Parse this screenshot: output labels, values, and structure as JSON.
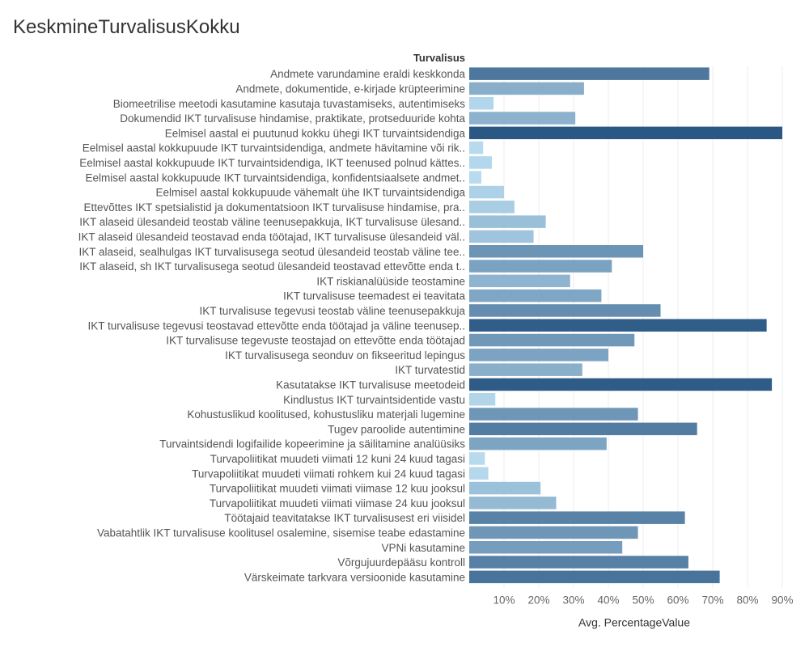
{
  "chart_data": {
    "type": "bar",
    "orientation": "horizontal",
    "title": "KeskmineTurvalisusKokku",
    "row_header": "Turvalisus",
    "xlabel": "Avg. PercentageValue",
    "xlim": [
      0,
      95
    ],
    "xticks": [
      10,
      20,
      30,
      40,
      50,
      60,
      70,
      80,
      90
    ],
    "xtick_labels": [
      "10%",
      "20%",
      "30%",
      "40%",
      "50%",
      "60%",
      "70%",
      "80%",
      "90%"
    ],
    "categories": [
      "Andmete varundamine eraldi keskkonda",
      "Andmete, dokumentide, e-kirjade krüpteerimine",
      "Biomeetrilise meetodi kasutamine kasutaja tuvastamiseks, autentimiseks",
      "Dokumendid IKT turvalisuse hindamise, praktikate, protseduuride kohta",
      "Eelmisel aastal ei puutunud kokku ühegi IKT turvaintsidendiga",
      "Eelmisel aastal kokkupuude IKT turvaintsidendiga, andmete hävitamine või rik..",
      "Eelmisel aastal kokkupuude IKT turvaintsidendiga, IKT teenused polnud kättes..",
      "Eelmisel aastal kokkupuude IKT turvaintsidendiga, konfidentsiaalsete andmet..",
      "Eelmisel aastal kokkupuude vähemalt ühe IKT turvaintsidendiga",
      "Ettevõttes IKT spetsialistid ja dokumentatsioon IKT turvalisuse hindamise, pra..",
      "IKT alaseid ülesandeid teostab väline teenusepakkuja, IKT turvalisuse ülesand..",
      "IKT alaseid ülesandeid teostavad enda töötajad, IKT turvalisuse ülesandeid väl..",
      "IKT alaseid, sealhulgas IKT turvalisusega seotud ülesandeid teostab väline tee..",
      "IKT alaseid, sh IKT turvalisusega seotud ülesandeid teostavad ettevõtte enda t..",
      "IKT riskianalüüside teostamine",
      "IKT turvalisuse teemadest ei teavitata",
      "IKT turvalisuse tegevusi teostab väline teenusepakkuja",
      "IKT turvalisuse tegevusi teostavad ettevõtte enda töötajad ja väline teenusep..",
      "IKT turvalisuse tegevuste teostajad on ettevõtte enda töötajad",
      "IKT turvalisusega seonduv on fikseeritud lepingus",
      "IKT turvatestid",
      "Kasutatakse IKT turvalisuse meetodeid",
      "Kindlustus IKT turvaintsidentide vastu",
      "Kohustuslikud koolitused, kohustusliku materjali lugemine",
      "Tugev paroolide autentimine",
      "Turvaintsidendi logifailide kopeerimine ja säilitamine analüüsiks",
      "Turvapoliitikat muudeti viimati 12 kuni 24 kuud tagasi",
      "Turvapoliitikat muudeti viimati rohkem kui 24 kuud tagasi",
      "Turvapoliitikat muudeti viimati viimase 12 kuu jooksul",
      "Turvapoliitikat muudeti viimati viimase 24 kuu jooksul",
      "Töötajaid teavitatakse IKT turvalisusest eri viisidel",
      "Vabatahtlik IKT turvalisuse koolitusel osalemine, sisemise teabe edastamine",
      "VPNi kasutamine",
      "Võrgujuurdepääsu kontroll",
      "Värskeimate tarkvara versioonide kasutamine"
    ],
    "values": [
      69,
      33,
      7,
      30.5,
      90,
      4,
      6.5,
      3.5,
      10,
      13,
      22,
      18.5,
      50,
      41,
      29,
      38,
      55,
      85.5,
      47.5,
      40,
      32.5,
      87,
      7.5,
      48.5,
      65.5,
      39.5,
      4.5,
      5.5,
      20.5,
      25,
      62,
      48.5,
      44,
      63,
      72
    ],
    "color_scale": {
      "low": "#b9dcf0",
      "high": "#2a5783",
      "min_value": 3,
      "max_value": 90
    }
  }
}
